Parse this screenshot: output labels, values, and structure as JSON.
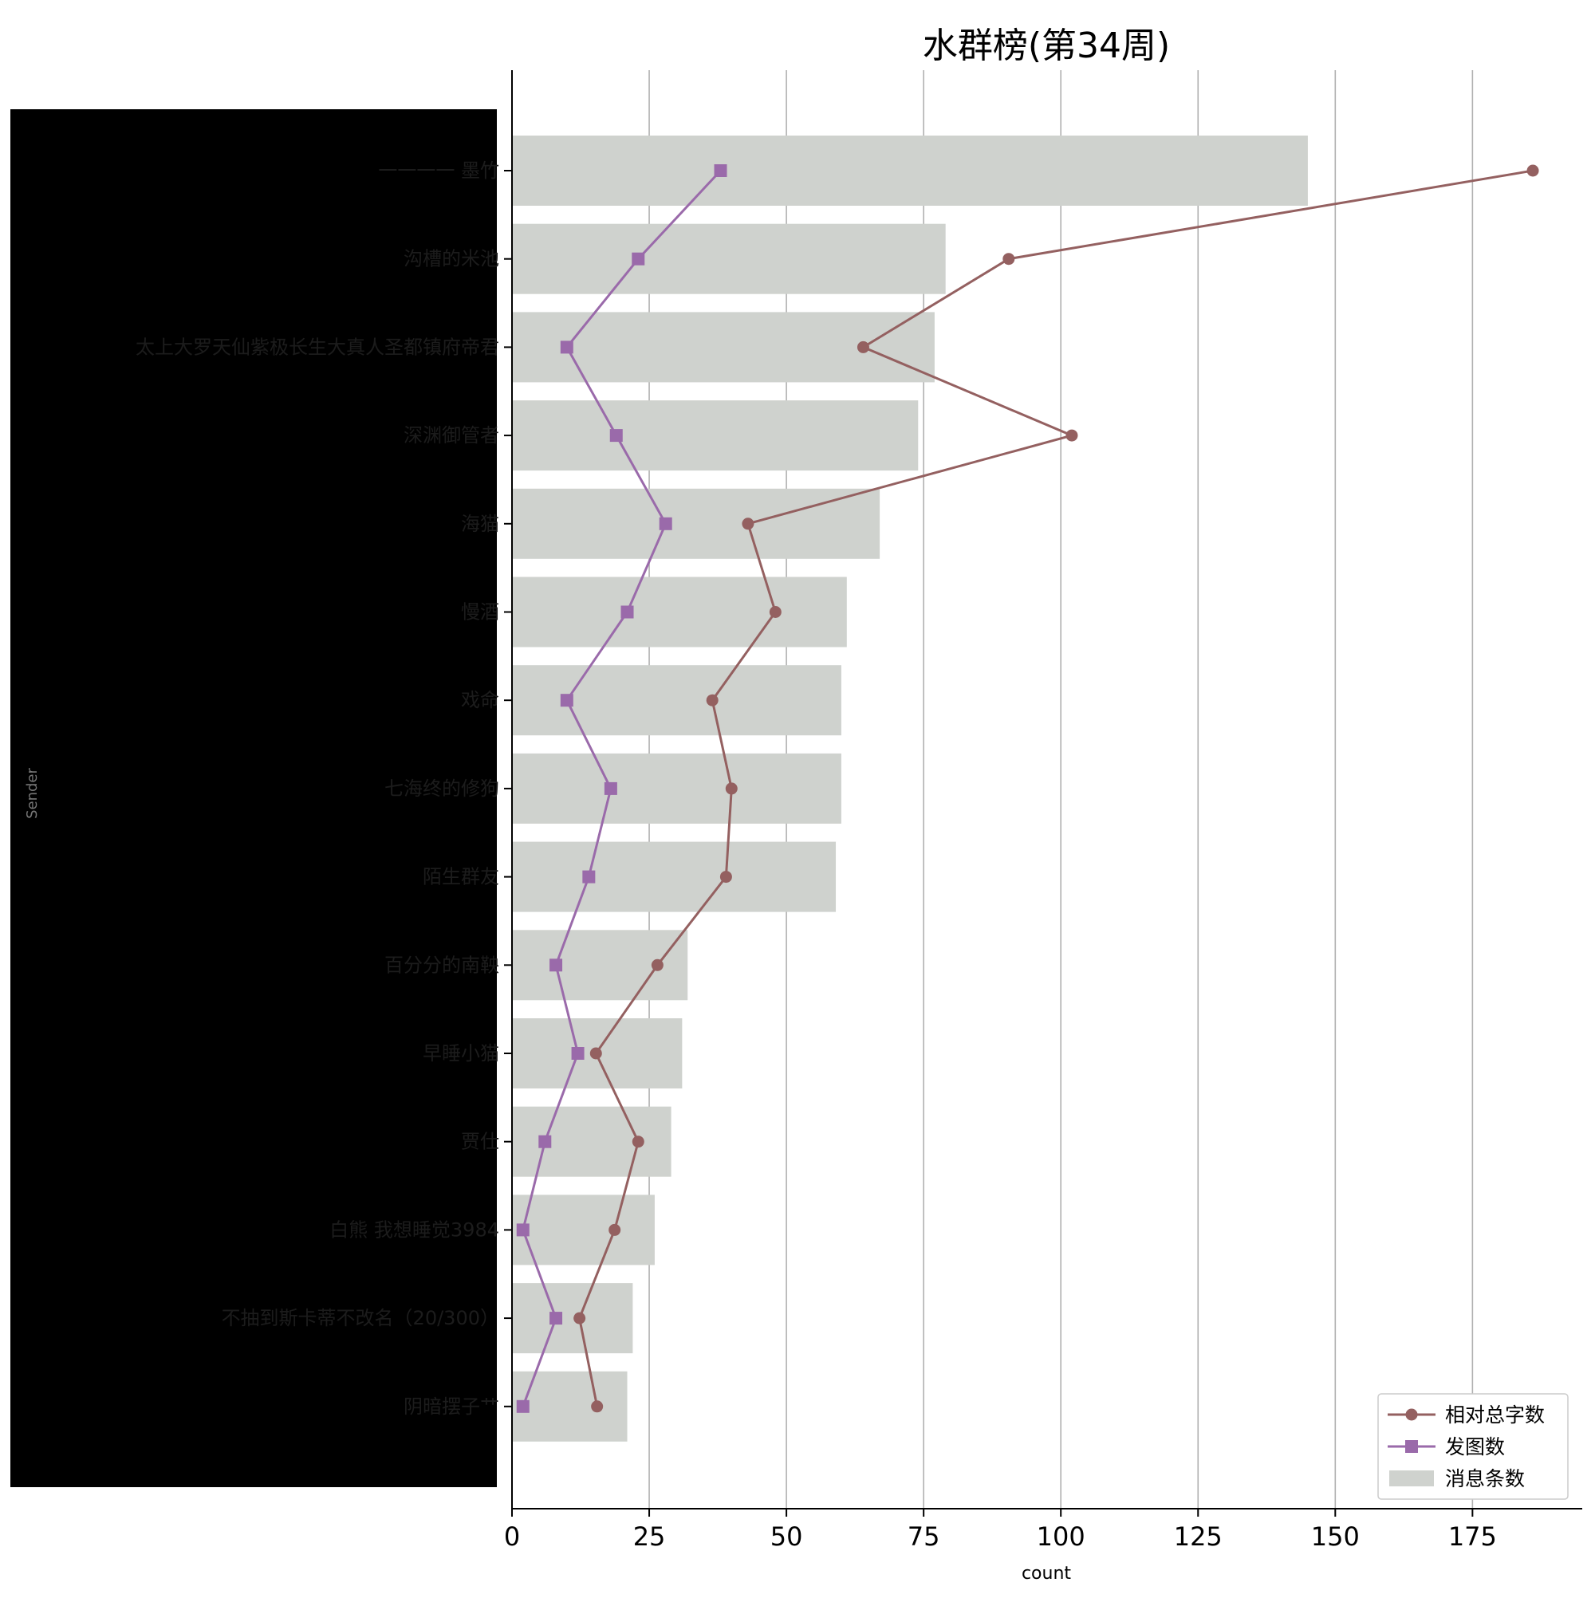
{
  "chart_data": {
    "type": "bar",
    "orientation": "horizontal",
    "title": "水群榜(第34周)",
    "xlabel": "count",
    "ylabel": "Sender",
    "xlim": [
      0,
      195
    ],
    "xticks": [
      0,
      25,
      50,
      75,
      100,
      125,
      150,
      175
    ],
    "grid": "vertical",
    "legend_position": "bottom-right",
    "categories": [
      "一一一一 墨竹",
      "沟槽的米池",
      "太上大罗天仙紫极长生大真人圣都镇府帝君",
      "深渊御管者",
      "海猫",
      "慢酒",
      "戏命",
      "七海终的修狗",
      "陌生群友",
      "百分分的南鞅",
      "早睡小猫",
      "贾仕",
      "白熊 我想睡觉3984",
      "不抽到斯卡蒂不改名（20/300）",
      "阴暗摆子艹"
    ],
    "series": [
      {
        "name": "消息条数",
        "kind": "bar",
        "color": "#cfd2ce",
        "values": [
          145,
          79,
          77,
          74,
          67,
          61,
          60,
          60,
          59,
          32,
          31,
          29,
          26,
          22,
          21
        ]
      },
      {
        "name": "相对总字数",
        "kind": "line",
        "marker": "circle",
        "color": "#946060",
        "values": [
          186,
          90.5,
          64,
          102,
          43,
          48,
          36.5,
          40,
          39,
          26.5,
          15.3,
          23,
          18.7,
          12.3,
          15.5
        ]
      },
      {
        "name": "发图数",
        "kind": "line",
        "marker": "square",
        "color": "#9a6aaa",
        "values": [
          38,
          23,
          10,
          19,
          28,
          21,
          10,
          18,
          14,
          8,
          12,
          6,
          2,
          8,
          2
        ]
      }
    ]
  }
}
